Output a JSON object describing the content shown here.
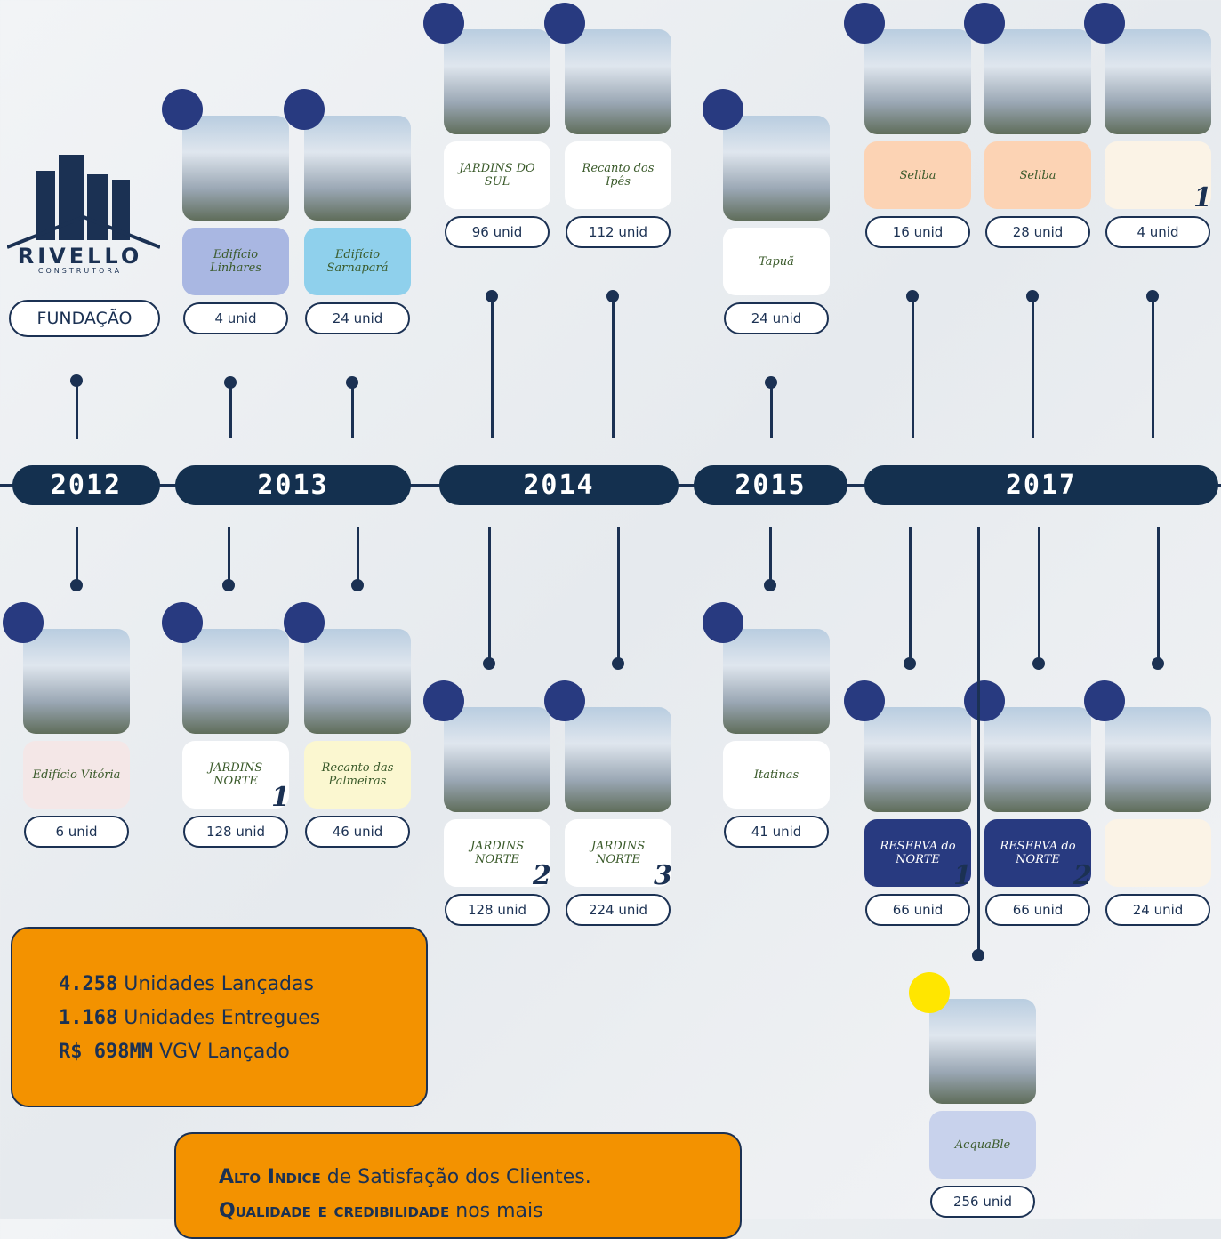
{
  "brand": {
    "name": "RIVELLO",
    "tagline": "CONSTRUTORA",
    "label": "FUNDAÇÃO"
  },
  "years": [
    "2012",
    "2013",
    "2014",
    "2015",
    "2017"
  ],
  "top_items": [
    {
      "logo": "Edifício Linhares",
      "units": "4 unid"
    },
    {
      "logo": "Edifício Sarnapará",
      "units": "24 unid"
    },
    {
      "logo": "JARDINS DO SUL",
      "units": "96 unid"
    },
    {
      "logo": "Recanto dos Ipês",
      "units": "112 unid"
    },
    {
      "logo": "Tapuã",
      "units": "24 unid"
    },
    {
      "logo": "Seliba",
      "units": "16 unid"
    },
    {
      "logo": "Seliba",
      "units": "28 unid"
    },
    {
      "badge": "1",
      "units": "4 unid"
    }
  ],
  "bottom_items": [
    {
      "logo": "Edifício Vitória",
      "units": "6 unid"
    },
    {
      "logo": "JARDINS NORTE",
      "badge": "1",
      "units": "128 unid"
    },
    {
      "logo": "Recanto das Palmeiras",
      "units": "46 unid"
    },
    {
      "logo": "JARDINS NORTE",
      "badge": "2",
      "units": "128 unid"
    },
    {
      "logo": "JARDINS NORTE",
      "badge": "3",
      "units": "224 unid"
    },
    {
      "logo": "Itatinas",
      "units": "41 unid"
    },
    {
      "logo": "RESERVA do NORTE",
      "badge": "1",
      "units": "66 unid"
    },
    {
      "logo": "RESERVA do NORTE",
      "badge": "2",
      "units": "66 unid"
    },
    {
      "units": "24 unid"
    },
    {
      "logo": "AcquaBle",
      "units": "256 unid"
    }
  ],
  "stats": [
    {
      "number": "4.258",
      "text": "Unidades Lançadas"
    },
    {
      "number": "1.168",
      "text": "Unidades Entregues"
    },
    {
      "number": "R$ 698MM",
      "text": "VGV Lançado"
    }
  ],
  "highlights": [
    {
      "strong": "Alto Indice",
      "text": "de Satisfação dos Clientes."
    },
    {
      "strong": "Qualidade e credibilidade",
      "text": "nos mais"
    }
  ]
}
